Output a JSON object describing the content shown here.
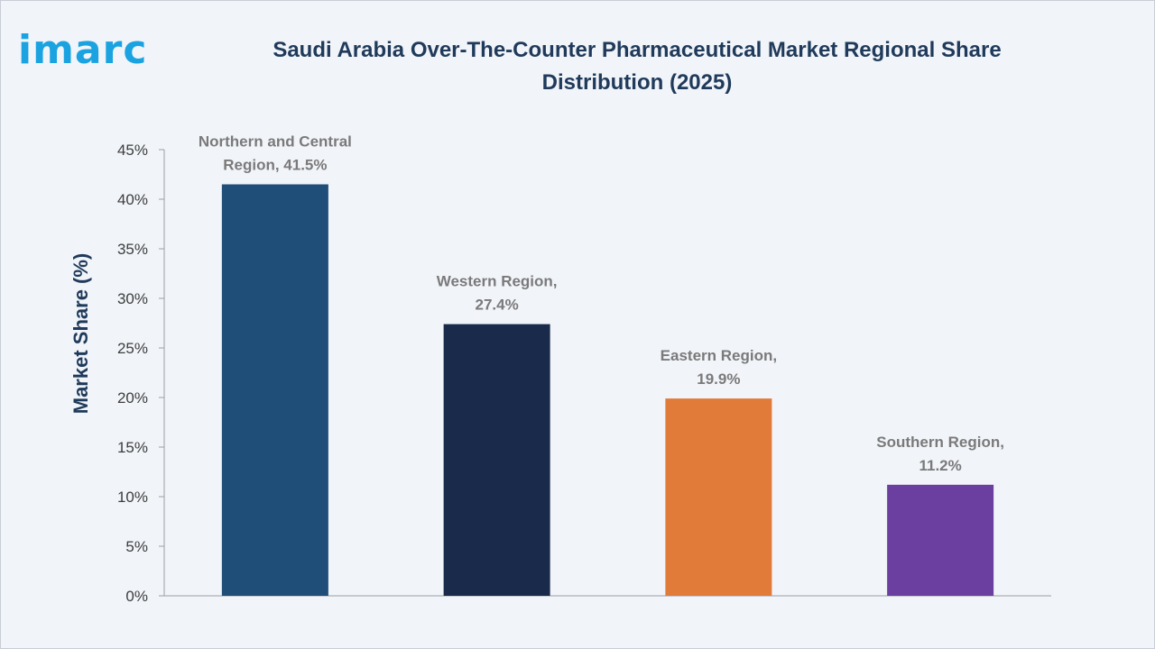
{
  "header": {
    "logo_text": "imarc",
    "title": "Saudi Arabia Over-The-Counter Pharmaceutical Market Regional Share Distribution (2025)"
  },
  "chart_data": {
    "type": "bar",
    "title": "Saudi Arabia Over-The-Counter Pharmaceutical Market Regional Share Distribution (2025)",
    "categories": [
      "Northern and Central Region",
      "Western Region",
      "Eastern Region",
      "Southern Region"
    ],
    "values": [
      41.5,
      27.4,
      19.9,
      11.2
    ],
    "data_labels": [
      [
        "Northern and Central",
        "Region, 41.5%"
      ],
      [
        "Western Region,",
        "27.4%"
      ],
      [
        "Eastern Region,",
        "19.9%"
      ],
      [
        "Southern Region,",
        "11.2%"
      ]
    ],
    "colors": [
      "#1f4e79",
      "#1a2a4a",
      "#e07b39",
      "#6b3fa0"
    ],
    "xlabel": "",
    "ylabel": "Market Share (%)",
    "ylim": [
      0,
      45
    ],
    "yticks": [
      "0%",
      "5%",
      "10%",
      "15%",
      "20%",
      "25%",
      "30%",
      "35%",
      "40%",
      "45%"
    ],
    "grid": false,
    "legend": "none"
  }
}
